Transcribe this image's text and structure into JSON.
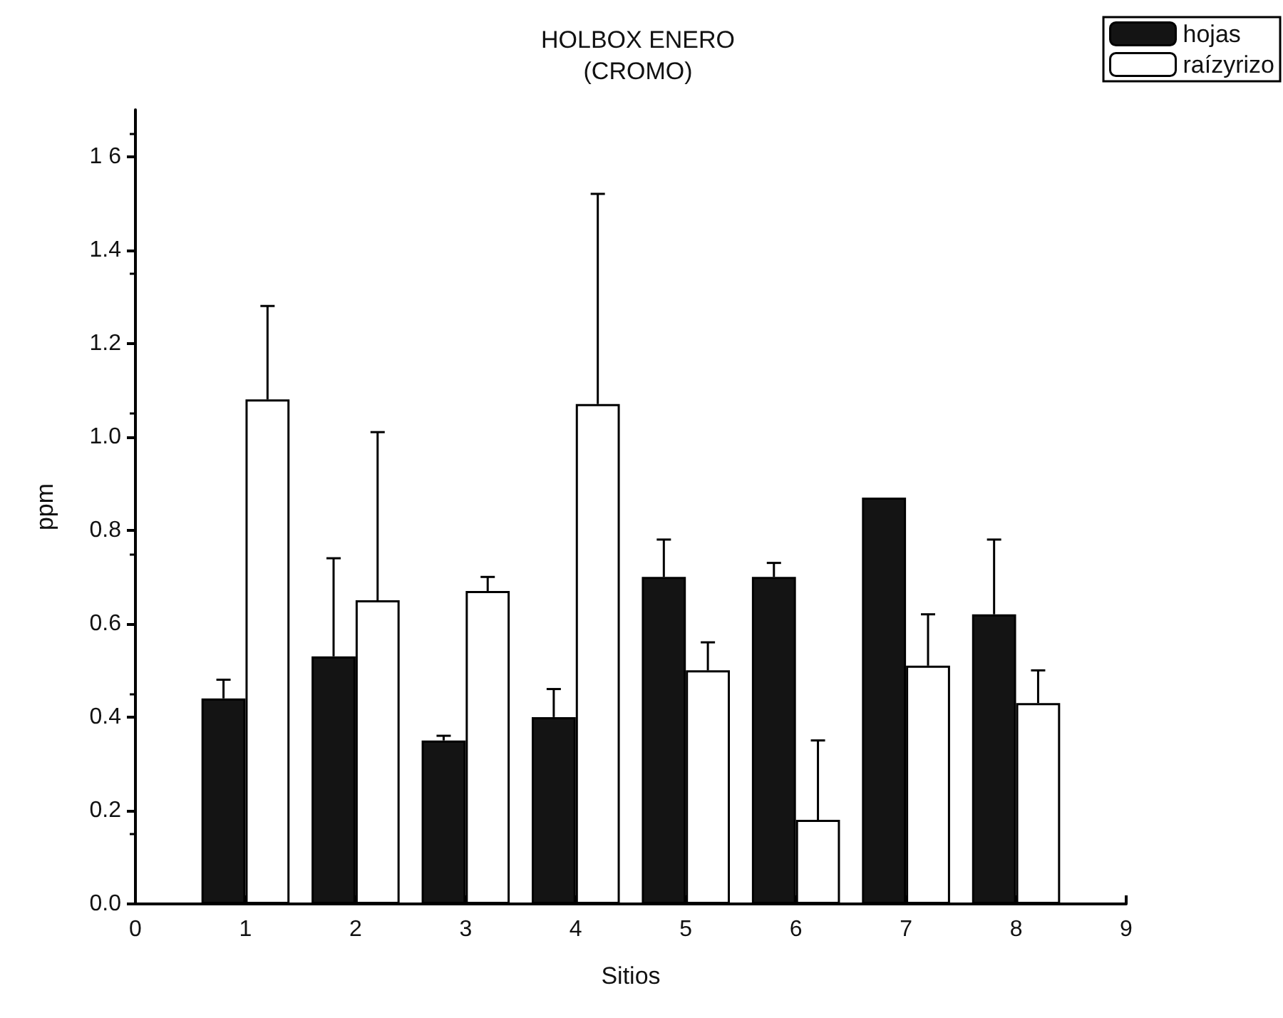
{
  "chart_data": {
    "type": "bar",
    "title": "HOLBOX ENERO\n(CROMO)",
    "xlabel": "Sitios",
    "ylabel": "ppm",
    "series": [
      {
        "name": "hojas",
        "color": "#141414",
        "x": [
          0.8,
          1.8,
          2.8,
          3.8,
          4.8,
          5.8,
          6.8,
          7.8
        ],
        "values": [
          0.44,
          0.53,
          0.35,
          0.4,
          0.7,
          0.7,
          0.87,
          0.62
        ],
        "errors": [
          [
            0.44,
            0.48
          ],
          [
            0.53,
            0.74
          ],
          [
            0.35,
            0.36
          ],
          [
            0.4,
            0.46
          ],
          [
            0.7,
            0.78
          ],
          [
            0.7,
            0.73
          ],
          null,
          [
            0.62,
            0.78
          ]
        ]
      },
      {
        "name": "raízyrizo",
        "color": "#ffffff",
        "x": [
          1.2,
          2.2,
          3.2,
          4.2,
          5.2,
          6.2,
          7.2,
          8.2
        ],
        "values": [
          1.08,
          0.65,
          0.67,
          1.07,
          0.5,
          0.18,
          0.51,
          0.43
        ],
        "errors": [
          [
            1.08,
            1.28
          ],
          [
            0.65,
            1.01
          ],
          [
            0.67,
            0.7
          ],
          [
            1.07,
            1.52
          ],
          [
            0.5,
            0.56
          ],
          [
            0.18,
            0.35
          ],
          [
            0.51,
            0.62
          ],
          [
            0.43,
            0.5
          ]
        ]
      }
    ],
    "xlim": [
      0,
      9
    ],
    "xticks": [
      0,
      1,
      2,
      3,
      4,
      5,
      6,
      7,
      8,
      9
    ],
    "ylim": [
      0,
      1.7
    ],
    "yticks": [
      {
        "value": 0,
        "label": "0.0"
      },
      {
        "value": 0.2,
        "label": "0.2"
      },
      {
        "value": 0.4,
        "label": "0.4"
      },
      {
        "value": 0.6,
        "label": "0.6"
      },
      {
        "value": 0.8,
        "label": "0.8"
      },
      {
        "value": 1,
        "label": "1.0"
      },
      {
        "value": 1.2,
        "label": "1.2"
      },
      {
        "value": 1.4,
        "label": "1.4"
      },
      {
        "value": 1.6,
        "label": "1 6"
      }
    ],
    "grid": false,
    "legend": "top right"
  }
}
